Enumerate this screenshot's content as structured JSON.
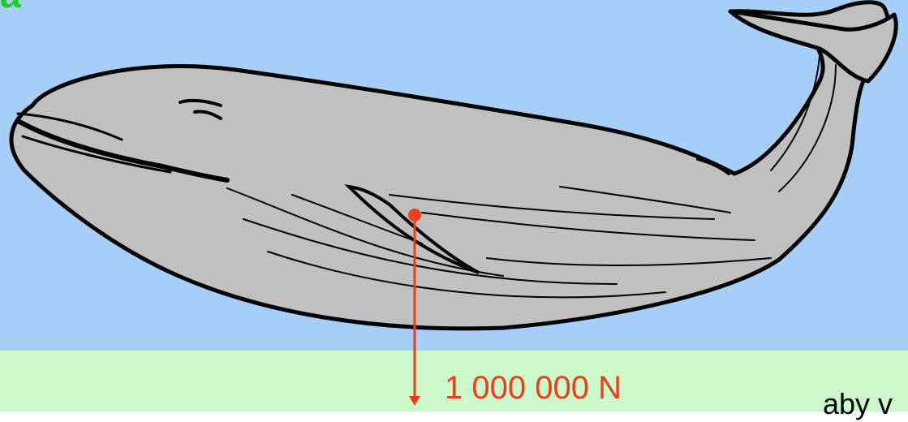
{
  "colors": {
    "sky": "#a6cef9",
    "ground": "#ccf8cc",
    "whale_body": "#c0c0c0",
    "whale_outline": "#000000",
    "force_arrow": "#e8401c",
    "force_label": "#e8401c",
    "corner_text": "#1bd11b",
    "right_text": "#000000"
  },
  "corner_text": "a",
  "force": {
    "label": "1 000 000 N",
    "direction": "down"
  },
  "right_text": "aby v"
}
